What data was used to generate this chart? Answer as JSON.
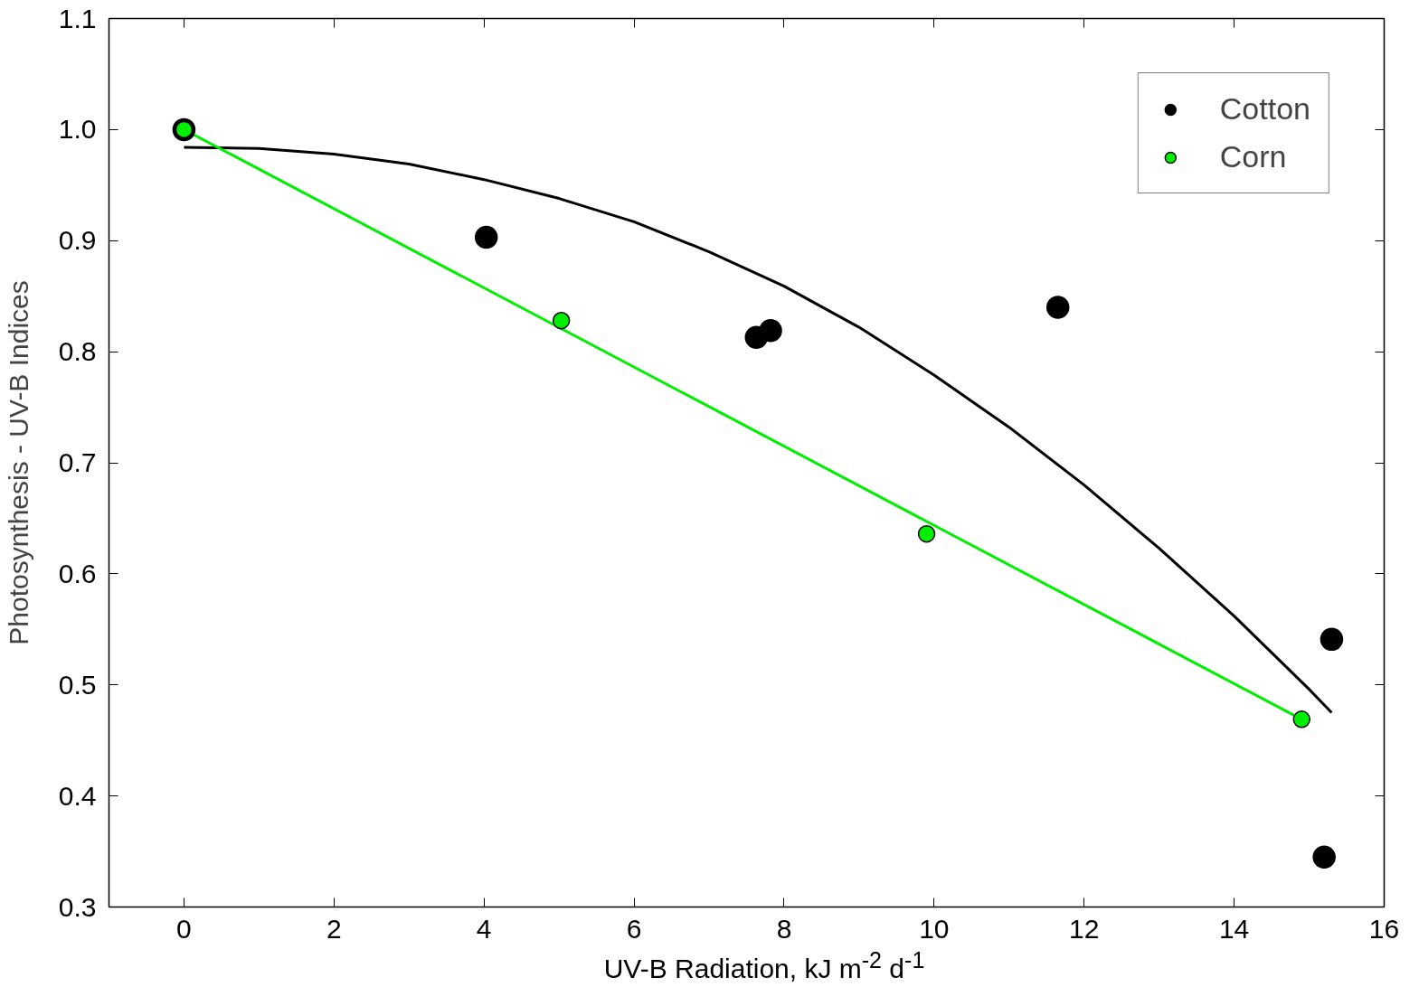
{
  "chart_data": {
    "type": "scatter",
    "xlabel": "UV-B Radiation, kJ m$^{-2}$ d$^{-1}$",
    "ylabel": "Photosynthesis - UV-B Indices",
    "xlim": [
      -1,
      16
    ],
    "xticks": [
      0,
      2,
      4,
      6,
      8,
      10,
      12,
      14,
      16
    ],
    "ylim": [
      0.3,
      1.1
    ],
    "yticks": [
      {
        "value": 0.3,
        "label": "0.3"
      },
      {
        "value": 0.4,
        "label": "0.4"
      },
      {
        "value": 0.5,
        "label": "0.5"
      },
      {
        "value": 0.6,
        "label": "0.6"
      },
      {
        "value": 0.7,
        "label": "0.7"
      },
      {
        "value": 0.8,
        "label": "0.8"
      },
      {
        "value": 0.9,
        "label": "0.9"
      },
      {
        "value": 1.0,
        "label": "1.0"
      },
      {
        "value": 1.1,
        "label": "1.1"
      }
    ],
    "grid": false,
    "legend": "top right",
    "series": [
      {
        "type": "line",
        "marker": "none",
        "color": "#000000",
        "x": [
          0,
          1,
          2,
          3,
          4,
          5,
          6,
          7,
          8,
          9,
          10,
          11,
          12,
          13,
          14,
          15,
          15.3
        ],
        "values": [
          0.984,
          0.983,
          0.978,
          0.969,
          0.955,
          0.938,
          0.917,
          0.89,
          0.859,
          0.822,
          0.779,
          0.732,
          0.68,
          0.623,
          0.562,
          0.496,
          0.475
        ]
      },
      {
        "type": "line",
        "marker": "none",
        "color": "#00ee00",
        "x": [
          0,
          14.9
        ],
        "values": [
          1.0,
          0.469
        ]
      },
      {
        "name": "Cotton",
        "marker": "circle",
        "color": "#000000",
        "x": [
          0,
          4.03,
          7.63,
          7.82,
          11.65,
          15.3,
          15.2
        ],
        "values": [
          1.0,
          0.903,
          0.813,
          0.819,
          0.84,
          0.541,
          0.345
        ]
      },
      {
        "name": "Corn",
        "marker": "circle",
        "color": "#00ee00",
        "x": [
          0,
          5.03,
          9.9,
          14.9
        ],
        "values": [
          1.0,
          0.828,
          0.636,
          0.469
        ]
      }
    ]
  }
}
